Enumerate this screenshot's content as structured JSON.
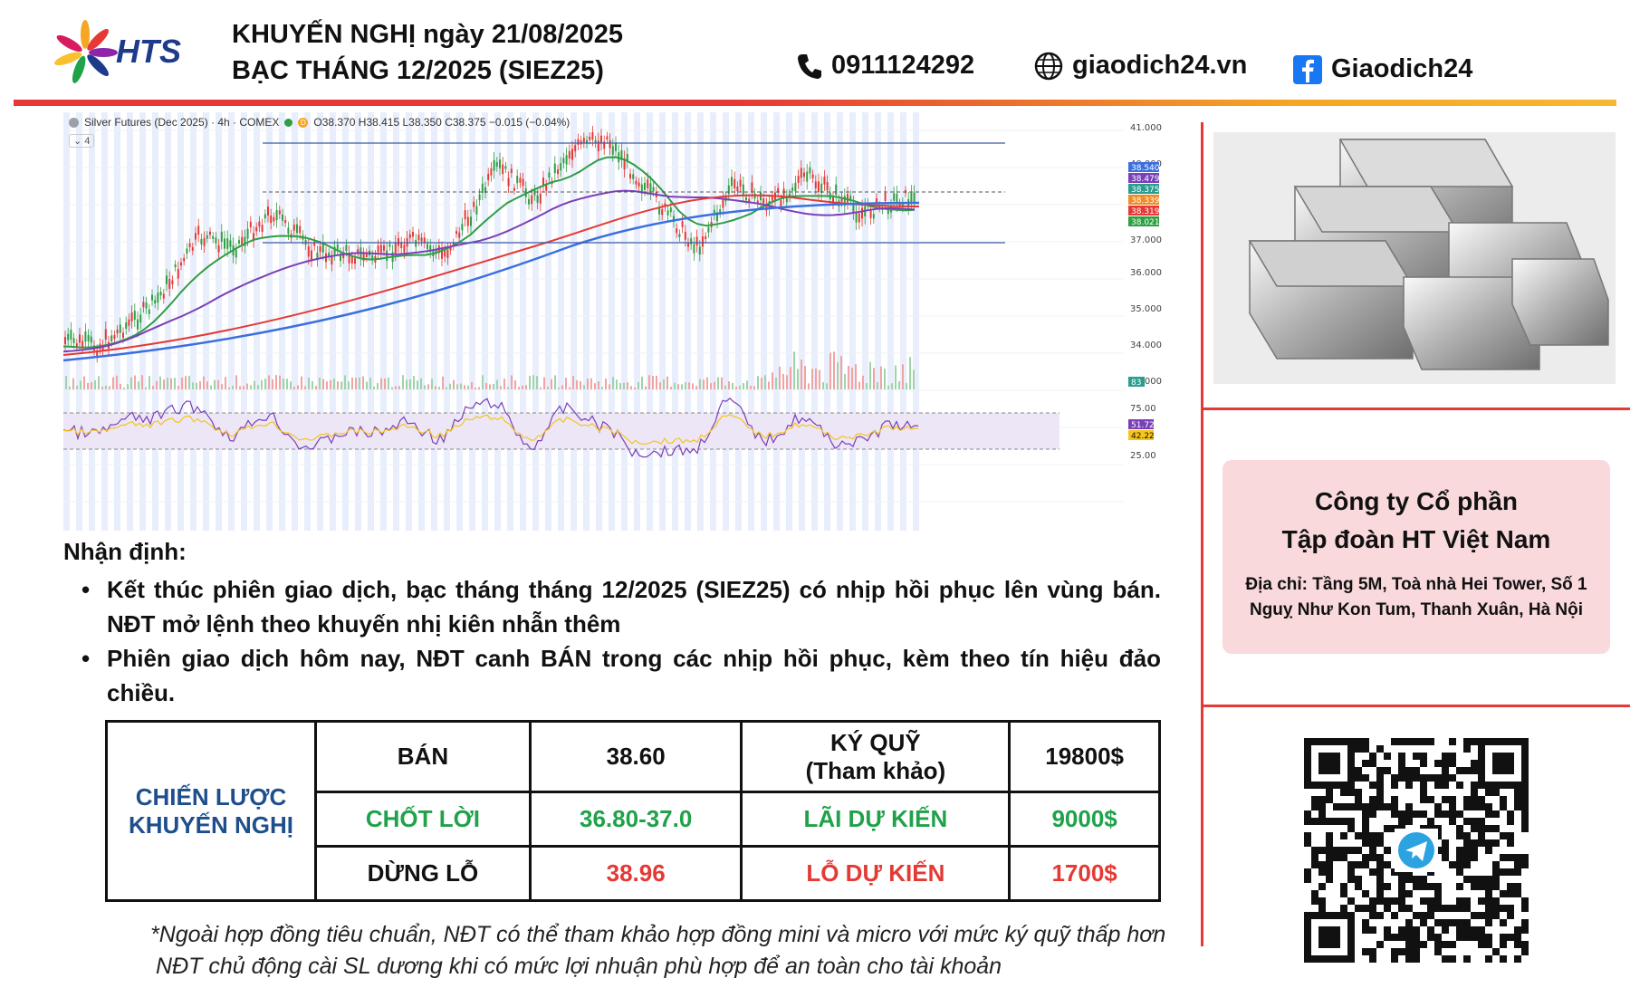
{
  "header": {
    "logo_text": "HTS",
    "title_line1": "KHUYẾN NGHỊ ngày 21/08/2025",
    "title_line2": "BẠC THÁNG 12/2025 (SIEZ25)",
    "phone": "0911124292",
    "website": "giaodich24.vn",
    "facebook": "Giaodich24"
  },
  "chart": {
    "legend_title": "Silver Futures (Dec 2025) · 4h · COMEX",
    "ohlc": "O38.370 H38.415 L38.350 C38.375 −0.015 (−0.04%)",
    "collapse_label": "4",
    "price_ticks": [
      "41.000",
      "40.000",
      "37.000",
      "36.000",
      "35.000",
      "34.000",
      "33.000"
    ],
    "price_badges": [
      {
        "v": "38.540",
        "c": "#3b6fe0"
      },
      {
        "v": "38.479",
        "c": "#7b3fb8"
      },
      {
        "v": "38.375",
        "c": "#2a9d8f"
      },
      {
        "v": "38.339",
        "c": "#f08a24"
      },
      {
        "v": "38.319",
        "c": "#e53935"
      },
      {
        "v": "38.021",
        "c": "#2f9e44"
      }
    ],
    "volume_badge": "83",
    "rsi_ticks": [
      "75.00",
      "25.00"
    ],
    "rsi_badges": [
      {
        "v": "51.72",
        "c": "#7b3fb8"
      },
      {
        "v": "42.22",
        "c": "#f5c518"
      }
    ]
  },
  "analysis": {
    "heading": "Nhận định:",
    "bullet1": "Kết thúc phiên giao dịch, bạc tháng tháng 12/2025 (SIEZ25) có nhịp hồi phục lên vùng bán. NĐT mở lệnh theo khuyến nhị kiên nhẫn thêm",
    "bullet2": "Phiên giao dịch hôm nay, NĐT canh BÁN trong các nhịp hồi phục, kèm theo tín hiệu đảo chiều."
  },
  "strategy": {
    "label_line1": "CHIẾN LƯỢC",
    "label_line2": "KHUYẾN NGHỊ",
    "row1": {
      "action": "BÁN",
      "price": "38.60",
      "field_line1": "KÝ QUỸ",
      "field_line2": "(Tham khảo)",
      "amount": "19800$"
    },
    "row2": {
      "action": "CHỐT LỜI",
      "price": "36.80-37.0",
      "field": "LÃI DỰ KIẾN",
      "amount": "9000$"
    },
    "row3": {
      "action": "DỪNG LỖ",
      "price": "38.96",
      "field": "LỖ DỰ KIẾN",
      "amount": "1700$"
    }
  },
  "notes": {
    "line1": "*Ngoài hợp đồng tiêu chuẩn, NĐT có thể tham khảo hợp đồng mini và micro với mức ký quỹ thấp hơn",
    "line2": "NĐT chủ động cài SL dương khi có mức lợi nhuận phù hợp để an toàn cho tài khoản"
  },
  "company": {
    "name_line1": "Công ty Cổ phần",
    "name_line2": "Tập đoàn HT Việt Nam",
    "address_line1": "Địa chỉ: Tầng 5M, Toà nhà Hei Tower, Số 1",
    "address_line2": "Nguỵ Như Kon Tum, Thanh Xuân, Hà Nội"
  },
  "colors": {
    "accent_red": "#e53935",
    "accent_orange": "#f5a623",
    "brand_blue": "#1e3a8a",
    "profit_green": "#1fa24a"
  },
  "icons": [
    "phone-icon",
    "globe-icon",
    "facebook-icon",
    "telegram-icon"
  ]
}
